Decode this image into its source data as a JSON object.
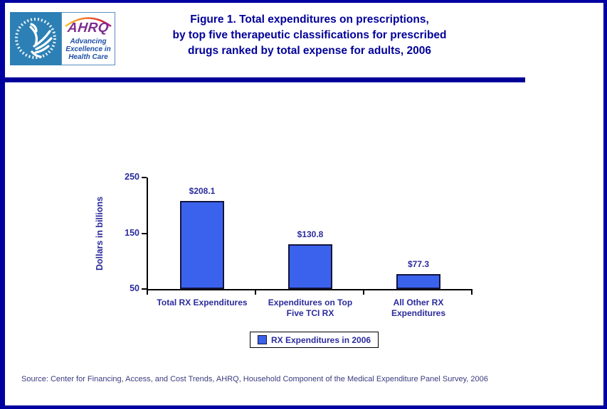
{
  "header": {
    "logo": {
      "hhs_seal": "hhs-eagle-seal",
      "ahrq_acronym": "AHRQ",
      "tagline_lines": [
        "Advancing",
        "Excellence in",
        "Health Care"
      ]
    },
    "title_lines": [
      "Figure 1. Total expenditures on prescriptions,",
      "by top five therapeutic classifications for prescribed",
      "drugs ranked by total expense for adults, 2006"
    ],
    "title_color": "#000099"
  },
  "chart_data": {
    "type": "bar",
    "title": "",
    "xlabel": "",
    "ylabel": "Dollars in billions",
    "categories": [
      "Total RX Expenditures",
      "Expenditures on Top Five TCI RX",
      "All Other RX Expenditures"
    ],
    "category_label_lines": [
      [
        "Total RX Expenditures"
      ],
      [
        "Expenditures on Top",
        "Five TCI RX"
      ],
      [
        "All Other RX",
        "Expenditures"
      ]
    ],
    "values": [
      208.1,
      130.8,
      77.3
    ],
    "data_labels": [
      "$208.1",
      "$130.8",
      "$77.3"
    ],
    "y_ticks": [
      250,
      150,
      50
    ],
    "ylim": [
      50,
      250
    ],
    "grid": false,
    "legend": [
      "RX Expenditures in 2006"
    ],
    "legend_position": "bottom-center",
    "bar_color": "#3A62EC",
    "bar_border_color": "#14143C",
    "text_color": "#2B2B9C"
  },
  "footer": {
    "source": "Source: Center for Financing, Access, and Cost Trends, AHRQ, Household Component of the Medical Expenditure Panel Survey, 2006"
  }
}
